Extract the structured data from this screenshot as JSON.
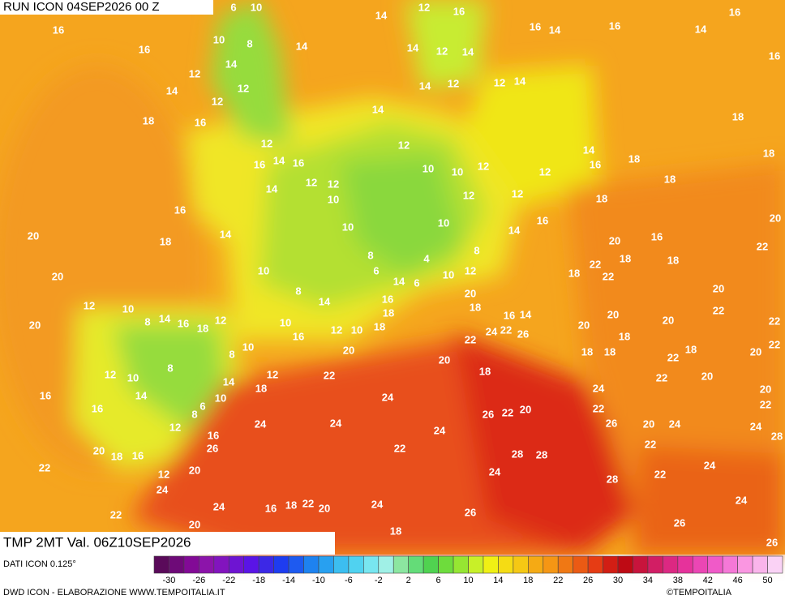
{
  "header": {
    "run": "RUN ICON 04SEP2026 00 Z",
    "field": "TMP 2MT Val. 06Z10SEP2026"
  },
  "map": {
    "labels": [
      6,
      10,
      14,
      12,
      16,
      16,
      16,
      10,
      8,
      16,
      14,
      16,
      14,
      16,
      14,
      14,
      12,
      14,
      16,
      14,
      12,
      14,
      12,
      12,
      14,
      12,
      12,
      14,
      18,
      16,
      14,
      18,
      18,
      12,
      12,
      16,
      14,
      16,
      14,
      16,
      18,
      12,
      10,
      10,
      12,
      18,
      12,
      14,
      12,
      10,
      12,
      12,
      18,
      16,
      14,
      10,
      10,
      16,
      14,
      20,
      20,
      18,
      20,
      16,
      22,
      8,
      10,
      8,
      4,
      22,
      18,
      18,
      6,
      14,
      6,
      10,
      12,
      18,
      22,
      20,
      8,
      20,
      16,
      14,
      12,
      10,
      18,
      18,
      20,
      22,
      8,
      14,
      16,
      18,
      12,
      16,
      14,
      20,
      20,
      22,
      20,
      10,
      16,
      12,
      10,
      18,
      24,
      22,
      26,
      18,
      8,
      10,
      20,
      22,
      20,
      18,
      18,
      18,
      20,
      22,
      20,
      18,
      12,
      10,
      8,
      22,
      12,
      22,
      22,
      20,
      14,
      18,
      24,
      24,
      16,
      14,
      6,
      8,
      10,
      20,
      22,
      16,
      24,
      24,
      24,
      26,
      22,
      20,
      22,
      26,
      20,
      24,
      24,
      12,
      16,
      28,
      22,
      22,
      20,
      18,
      16,
      26,
      28,
      28,
      24,
      24,
      22,
      12,
      20,
      22,
      28,
      24,
      24,
      16,
      18,
      22,
      20,
      24,
      26,
      24,
      22,
      20,
      26,
      18,
      26
    ]
  },
  "legend": {
    "source": "DATI ICON 0.125°",
    "ticks": [
      -30,
      -26,
      -22,
      -18,
      -14,
      -10,
      -6,
      -2,
      2,
      6,
      10,
      14,
      18,
      22,
      26,
      30,
      34,
      38,
      42,
      46,
      50
    ],
    "colors": [
      "#5a0a5a",
      "#6e0a78",
      "#820a96",
      "#8c14aa",
      "#8214be",
      "#6e14d2",
      "#5a14e6",
      "#3c28e6",
      "#1e3cf0",
      "#1e5af0",
      "#1e82f0",
      "#28a0f0",
      "#3cbef0",
      "#50d2f0",
      "#78e6f0",
      "#a0f0e6",
      "#8ce6a0",
      "#64dc78",
      "#50d250",
      "#6edc3c",
      "#96e632",
      "#c8f028",
      "#f0f014",
      "#f5dc14",
      "#f5c814",
      "#f5aa14",
      "#f59614",
      "#f07814",
      "#eb5a14",
      "#e63c14",
      "#d21e14",
      "#be0a14",
      "#c8143c",
      "#d21e64",
      "#dc2882",
      "#e6329b",
      "#eb46b4",
      "#f05ac8",
      "#f578d7",
      "#fa96e1",
      "#fab4eb",
      "#fad2f5"
    ]
  },
  "footer": {
    "credit": "DWD ICON - ELABORAZIONE WWW.TEMPOITALIA.IT",
    "copyright": "©TEMPOITALIA"
  }
}
